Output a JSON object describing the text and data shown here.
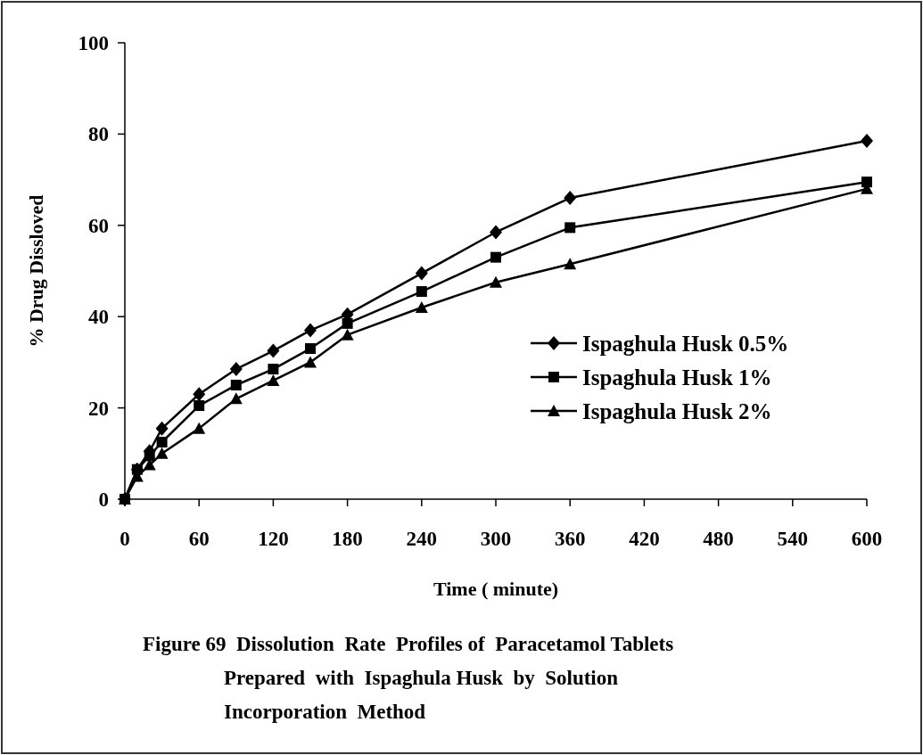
{
  "chart_data": {
    "type": "line",
    "xlabel": "Time ( minute)",
    "ylabel": "% Drug Dissloved",
    "annotations": [
      "Figure 69  Dissolution  Rate  Profiles of  Paracetamol Tablets",
      "Prepared  with  Ispaghula Husk  by  Solution",
      "Incorporation  Method"
    ],
    "x": [
      0,
      10,
      20,
      30,
      60,
      90,
      120,
      150,
      180,
      240,
      300,
      360,
      600
    ],
    "xlim": [
      0,
      600
    ],
    "xticks": [
      0,
      60,
      120,
      180,
      240,
      300,
      360,
      420,
      480,
      540,
      600
    ],
    "ylim": [
      0,
      100
    ],
    "yticks": [
      0,
      20,
      40,
      60,
      80,
      100
    ],
    "grid": false,
    "legend": "right",
    "line_style": "solid",
    "series": [
      {
        "name": "Ispaghula Husk 0.5%",
        "color": "#000000",
        "marker": "diamond",
        "values": [
          0,
          6.5,
          10.5,
          15.5,
          23,
          28.5,
          32.5,
          37,
          40.5,
          49.5,
          58.5,
          66,
          78.5
        ]
      },
      {
        "name": "Ispaghula Husk 1%",
        "color": "#000000",
        "marker": "square",
        "values": [
          0,
          6.5,
          9.5,
          12.5,
          20.5,
          25,
          28.5,
          33,
          38.5,
          45.5,
          53,
          59.5,
          69.5
        ]
      },
      {
        "name": "Ispaghula Husk 2%",
        "color": "#000000",
        "marker": "triangle",
        "values": [
          0,
          5,
          7.5,
          10,
          15.5,
          22,
          26,
          30,
          36,
          42,
          47.5,
          51.5,
          68
        ]
      }
    ]
  }
}
